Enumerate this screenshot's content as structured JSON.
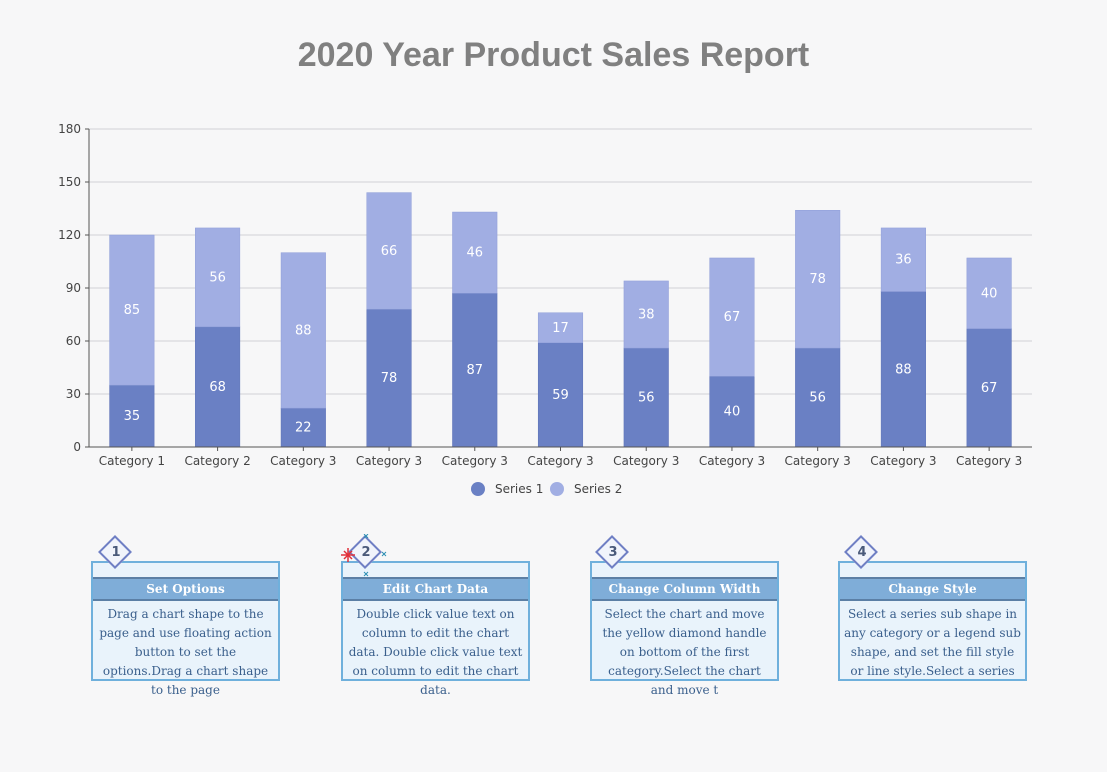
{
  "title": "2020 Year Product Sales Report",
  "chart_data": {
    "type": "bar",
    "stacked": true,
    "categories": [
      "Category 1",
      "Category 2",
      "Category 3",
      "Category 3",
      "Category 3",
      "Category 3",
      "Category 3",
      "Category 3",
      "Category 3",
      "Category 3",
      "Category 3"
    ],
    "series": [
      {
        "name": "Series 1",
        "color": "#6a80c4",
        "values": [
          35,
          68,
          22,
          78,
          87,
          59,
          56,
          40,
          56,
          88,
          67
        ]
      },
      {
        "name": "Series 2",
        "color": "#a1aee3",
        "values": [
          85,
          56,
          88,
          66,
          46,
          17,
          38,
          67,
          78,
          36,
          40
        ]
      }
    ],
    "y_ticks": [
      "0",
      "30",
      "60",
      "90",
      "120",
      "150",
      "180"
    ],
    "ylim": [
      0,
      180
    ],
    "grid": true,
    "legend": "bottom-center"
  },
  "cards": [
    {
      "number": "1",
      "heading": "Set Options",
      "body": "Drag a chart shape to the page and use floating action button to set the options.Drag a chart shape to the page"
    },
    {
      "number": "2",
      "heading": "Edit Chart Data",
      "body": "Double click value text on column to edit the chart data. Double click value text on column to edit the chart data."
    },
    {
      "number": "3",
      "heading": "Change Column Width",
      "body": "Select the chart and move the yellow diamond handle on bottom of the first category.Select the chart and move t"
    },
    {
      "number": "4",
      "heading": "Change Style",
      "body": "Select a series sub shape in any category or a legend sub shape, and set the fill style or line style.Select a series"
    }
  ]
}
